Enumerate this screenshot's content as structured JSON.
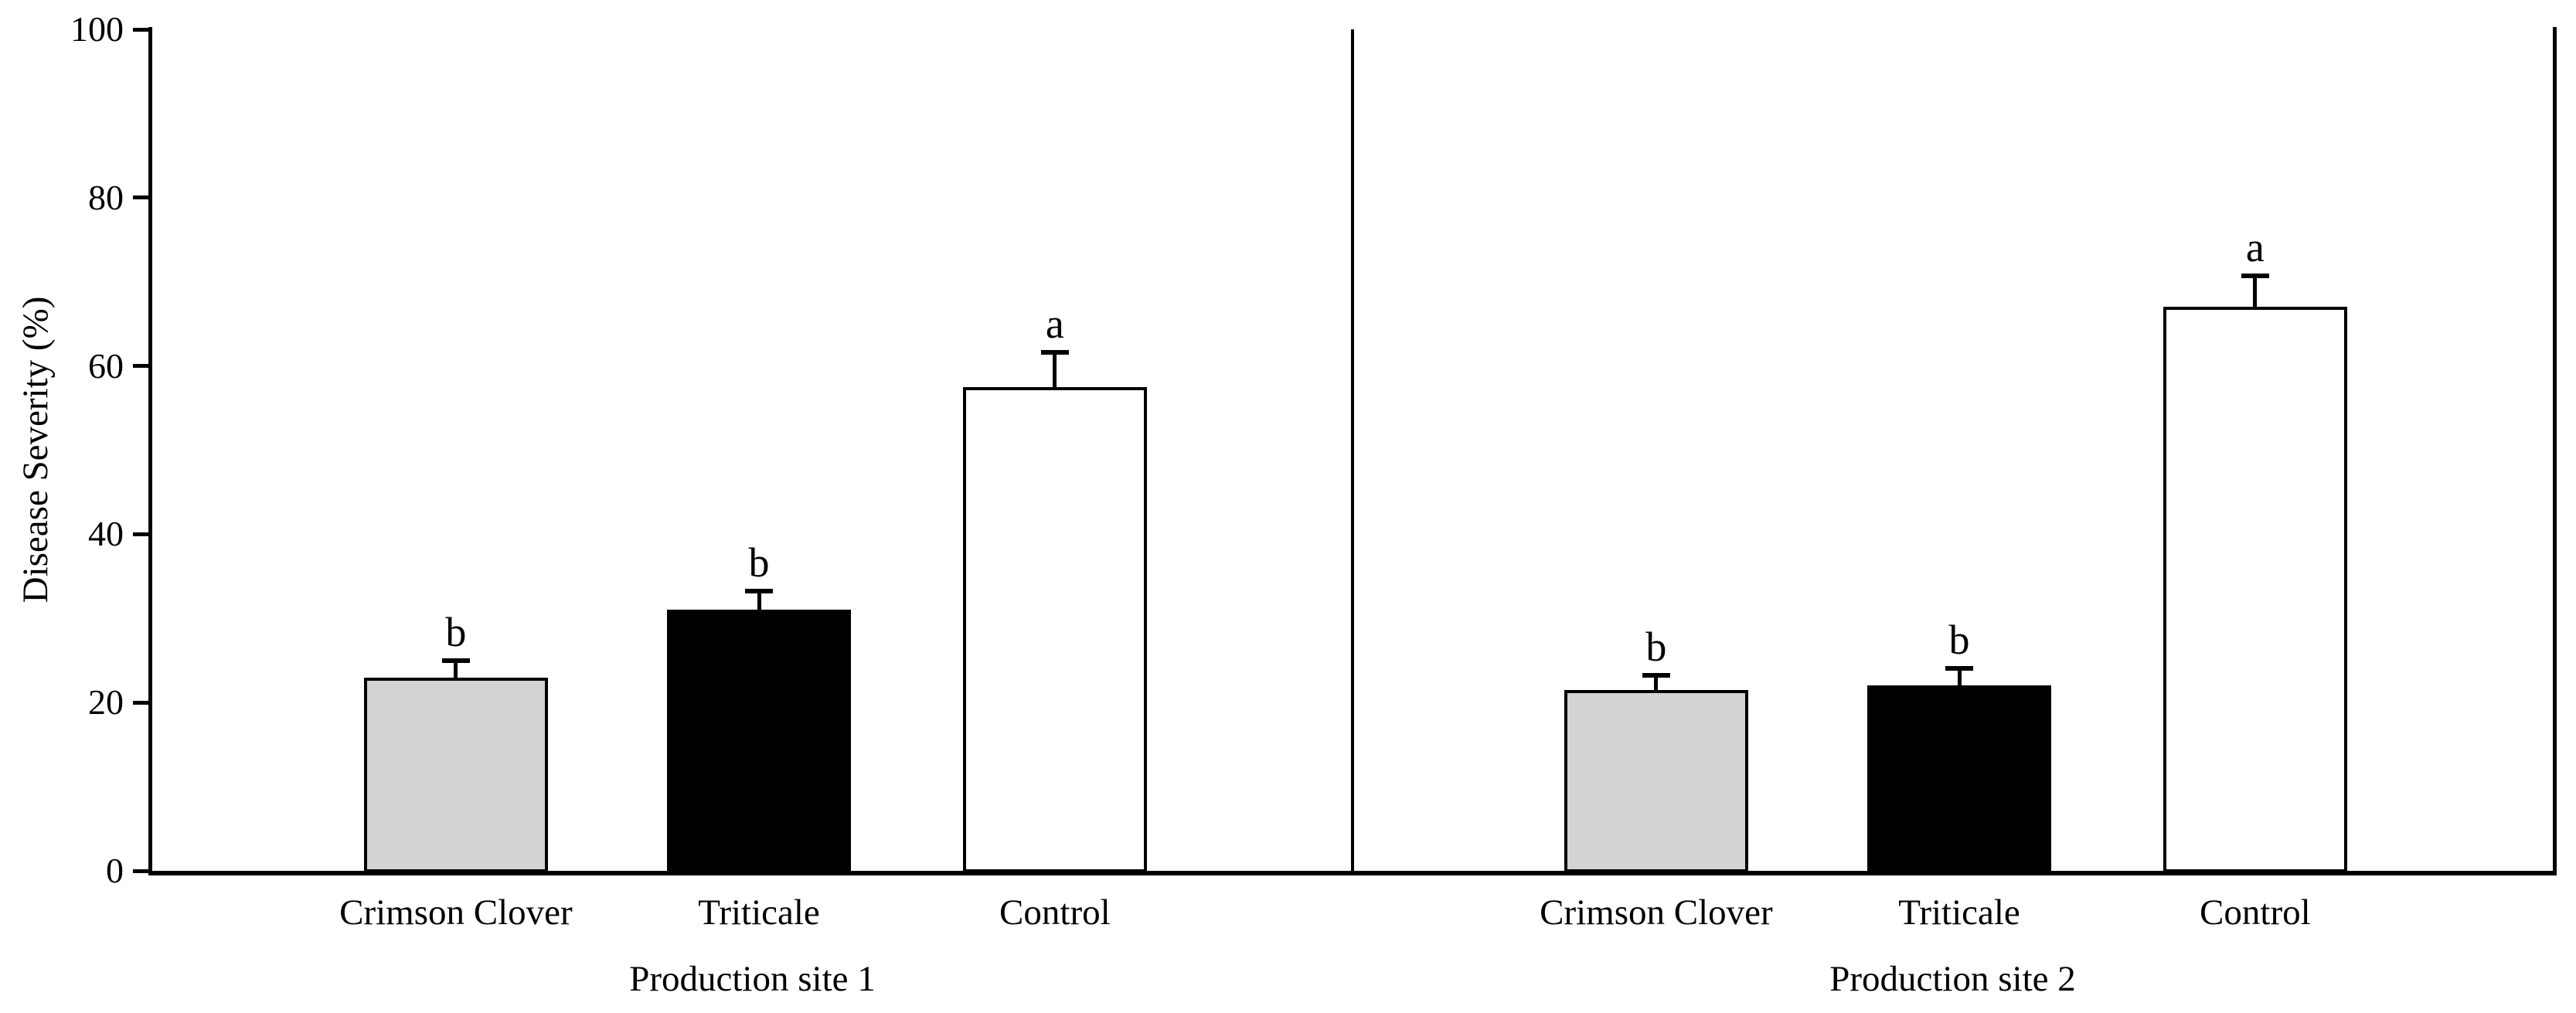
{
  "figure": {
    "background": "#ffffff",
    "ink_color": "#000000",
    "bar_fill_gray": "#d3d3d3",
    "bar_fill_black": "#000000",
    "bar_fill_white": "#ffffff"
  },
  "chart_data": {
    "type": "bar",
    "title": "",
    "xlabel": "",
    "ylabel": "Disease Severity (%)",
    "ylim": [
      0,
      100
    ],
    "yticks": [
      0,
      20,
      40,
      60,
      80,
      100
    ],
    "grid": false,
    "legend": "none",
    "error_bars": "upper only",
    "groups": [
      {
        "label": "Production site 1",
        "bars": [
          {
            "category": "Crimson Clover",
            "value": 23.0,
            "error_up": 2.0,
            "sig_letter": "b",
            "fill": "#d3d3d3"
          },
          {
            "category": "Triticale",
            "value": 31.0,
            "error_up": 2.2,
            "sig_letter": "b",
            "fill": "#000000"
          },
          {
            "category": "Control",
            "value": 57.5,
            "error_up": 4.1,
            "sig_letter": "a",
            "fill": "#ffffff"
          }
        ]
      },
      {
        "label": "Production site 2",
        "bars": [
          {
            "category": "Crimson Clover",
            "value": 21.5,
            "error_up": 1.7,
            "sig_letter": "b",
            "fill": "#d3d3d3"
          },
          {
            "category": "Triticale",
            "value": 22.0,
            "error_up": 2.1,
            "sig_letter": "b",
            "fill": "#000000"
          },
          {
            "category": "Control",
            "value": 67.0,
            "error_up": 3.7,
            "sig_letter": "a",
            "fill": "#ffffff"
          }
        ]
      }
    ]
  }
}
